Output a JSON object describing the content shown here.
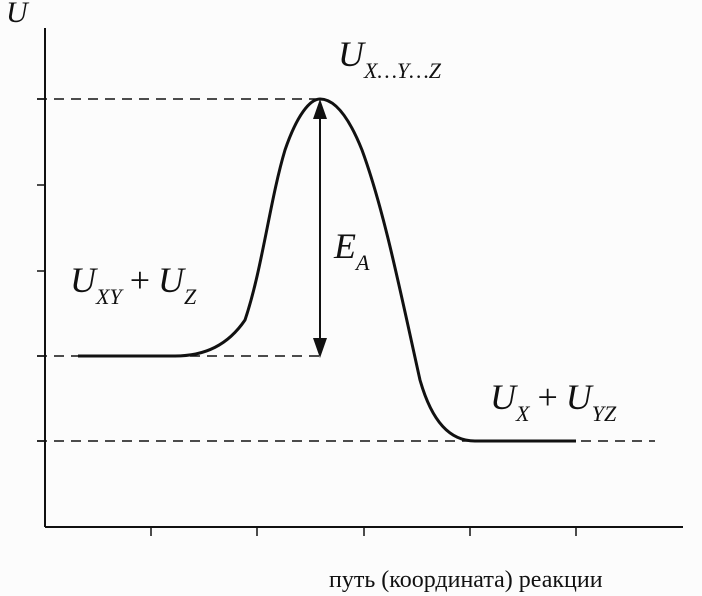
{
  "axis": {
    "y_label": "U",
    "x_label": "путь (координата) реакции"
  },
  "labels": {
    "transition": {
      "main": "U",
      "sub": "X…Y…Z"
    },
    "reactants": {
      "a": "U",
      "a_sub": "XY",
      "plus": "+",
      "b": "U",
      "b_sub": "Z"
    },
    "products": {
      "a": "U",
      "a_sub": "X",
      "plus": "+",
      "b": "U",
      "b_sub": "YZ"
    },
    "activation": {
      "main": "E",
      "sub": "A"
    }
  },
  "colors": {
    "ink": "#111111",
    "background": "#fcfcfc"
  }
}
